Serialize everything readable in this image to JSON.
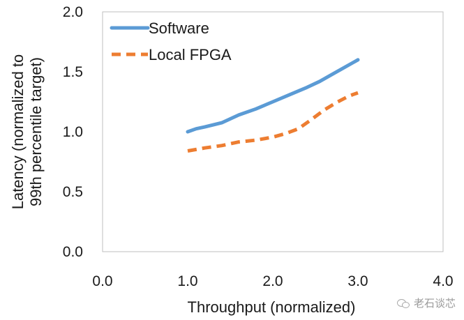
{
  "chart_data": {
    "type": "line",
    "xlabel": "Throughput (normalized)",
    "ylabel_lines": [
      "Latency (normalized to",
      "99th percentile target)"
    ],
    "xlim": [
      0,
      4
    ],
    "ylim": [
      0,
      2
    ],
    "xticks": [
      "0.0",
      "1.0",
      "2.0",
      "3.0",
      "4.0"
    ],
    "yticks": [
      "0.0",
      "0.5",
      "1.0",
      "1.5",
      "2.0"
    ],
    "legend_position": "top-left",
    "grid": false,
    "series": [
      {
        "name": "Software",
        "color": "#5B9BD5",
        "style": "solid",
        "x": [
          1.0,
          1.1,
          1.2,
          1.4,
          1.6,
          1.8,
          2.0,
          2.2,
          2.4,
          2.55,
          2.7,
          2.8,
          3.0
        ],
        "y": [
          1.0,
          1.025,
          1.04,
          1.075,
          1.14,
          1.19,
          1.25,
          1.31,
          1.37,
          1.42,
          1.48,
          1.52,
          1.6
        ]
      },
      {
        "name": "Local FPGA",
        "color": "#ED7D31",
        "style": "dashed",
        "x": [
          1.0,
          1.2,
          1.4,
          1.6,
          1.8,
          2.0,
          2.15,
          2.3,
          2.45,
          2.6,
          2.75,
          2.9,
          3.0
        ],
        "y": [
          0.84,
          0.865,
          0.885,
          0.915,
          0.93,
          0.955,
          0.985,
          1.025,
          1.1,
          1.18,
          1.245,
          1.3,
          1.325
        ]
      }
    ]
  },
  "watermark": {
    "text": "老石谈芯",
    "icon": "wechat-icon"
  }
}
